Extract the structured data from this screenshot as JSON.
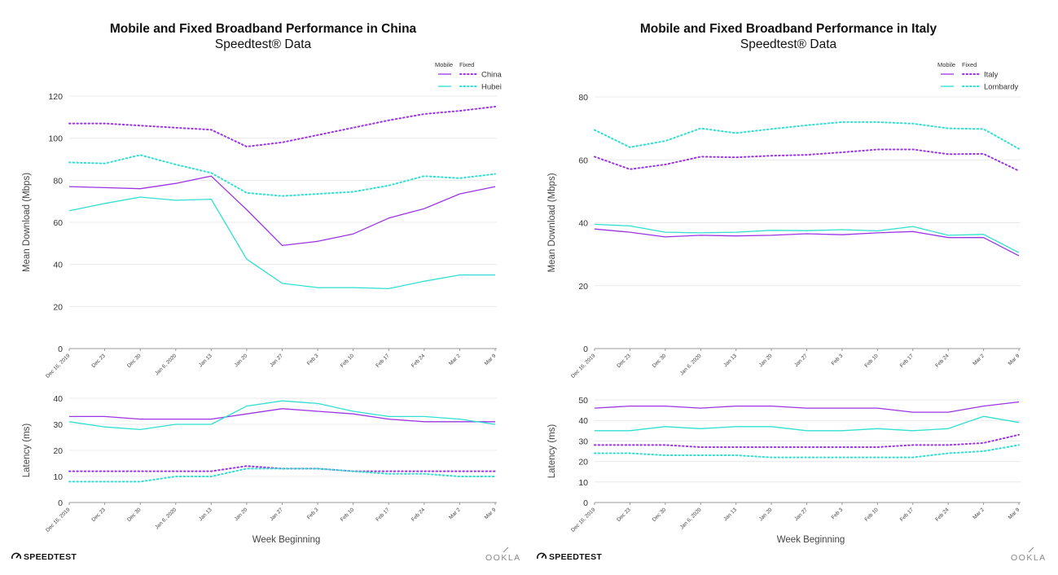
{
  "colors": {
    "purple": "#9a35e3",
    "cyan": "#2fe0d0"
  },
  "branding": {
    "speedtest": "SPEEDTEST",
    "ookla": "OOKLA"
  },
  "chart_data": [
    {
      "type": "line",
      "title": "Mobile and Fixed Broadband Performance in China",
      "subtitle": "Speedtest® Data",
      "categories": [
        "Dec 16, 2019",
        "Dec 23",
        "Dec 30",
        "Jan 6, 2020",
        "Jan 13",
        "Jan 20",
        "Jan 27",
        "Feb 3",
        "Feb 10",
        "Feb 17",
        "Feb 24",
        "Mar 2",
        "Mar 9"
      ],
      "legend": {
        "mobile_label": "Mobile",
        "fixed_label": "Fixed",
        "entries": [
          "China",
          "Hubei"
        ]
      },
      "download": {
        "ylabel": "Mean Download (Mbps)",
        "ylim": [
          0,
          120
        ],
        "yticks": [
          0,
          20,
          40,
          60,
          80,
          100,
          120
        ],
        "series": [
          {
            "name": "China",
            "type": "Mobile",
            "color": "purple",
            "values": [
              77,
              76.5,
              76,
              78.5,
              82,
              66,
              49,
              51,
              54.5,
              62,
              66.5,
              73.5,
              77
            ]
          },
          {
            "name": "Hubei",
            "type": "Mobile",
            "color": "cyan",
            "values": [
              65.5,
              69,
              72,
              70.5,
              71,
              42.5,
              31,
              29,
              29,
              28.5,
              32,
              35,
              35
            ]
          },
          {
            "name": "China",
            "type": "Fixed",
            "color": "purple",
            "values": [
              107,
              107,
              106,
              105,
              104,
              96,
              98,
              101.5,
              105,
              108.5,
              111.5,
              113,
              115
            ]
          },
          {
            "name": "Hubei",
            "type": "Fixed",
            "color": "cyan",
            "values": [
              88.5,
              88,
              92,
              87.5,
              83.5,
              74,
              72.5,
              73.5,
              74.5,
              77.5,
              82,
              81,
              83
            ]
          }
        ]
      },
      "latency": {
        "ylabel": "Latency (ms)",
        "xlabel": "Week Beginning",
        "ylim": [
          0,
          40
        ],
        "yticks": [
          0,
          10,
          20,
          30,
          40
        ],
        "series": [
          {
            "name": "China",
            "type": "Mobile",
            "color": "purple",
            "values": [
              33,
              33,
              32,
              32,
              32,
              34,
              36,
              35,
              34,
              32,
              31,
              31,
              31
            ]
          },
          {
            "name": "Hubei",
            "type": "Mobile",
            "color": "cyan",
            "values": [
              31,
              29,
              28,
              30,
              30,
              37,
              39,
              38,
              35,
              33,
              33,
              32,
              30
            ]
          },
          {
            "name": "China",
            "type": "Fixed",
            "color": "purple",
            "values": [
              12,
              12,
              12,
              12,
              12,
              14,
              13,
              13,
              12,
              12,
              12,
              12,
              12
            ]
          },
          {
            "name": "Hubei",
            "type": "Fixed",
            "color": "cyan",
            "values": [
              8,
              8,
              8,
              10,
              10,
              13,
              13,
              13,
              12,
              11,
              11,
              10,
              10
            ]
          }
        ]
      }
    },
    {
      "type": "line",
      "title": "Mobile and Fixed Broadband Performance in Italy",
      "subtitle": "Speedtest® Data",
      "categories": [
        "Dec 16, 2019",
        "Dec 23",
        "Dec 30",
        "Jan 6, 2020",
        "Jan 13",
        "Jan 20",
        "Jan 27",
        "Feb 3",
        "Feb 10",
        "Feb 17",
        "Feb 24",
        "Mar 2",
        "Mar 9"
      ],
      "legend": {
        "mobile_label": "Mobile",
        "fixed_label": "Fixed",
        "entries": [
          "Italy",
          "Lombardy"
        ]
      },
      "download": {
        "ylabel": "Mean Download (Mbps)",
        "ylim": [
          0,
          80
        ],
        "yticks": [
          0,
          20,
          40,
          60,
          80
        ],
        "series": [
          {
            "name": "Italy",
            "type": "Mobile",
            "color": "purple",
            "values": [
              38,
              37,
              35.5,
              36,
              35.8,
              36,
              36.5,
              36.2,
              36.8,
              37.2,
              35.3,
              35.3,
              29.5
            ]
          },
          {
            "name": "Lombardy",
            "type": "Mobile",
            "color": "cyan",
            "values": [
              39.5,
              39,
              37,
              36.8,
              37,
              37.6,
              37.5,
              37.8,
              37.4,
              38.8,
              36,
              36.3,
              30.5
            ]
          },
          {
            "name": "Italy",
            "type": "Fixed",
            "color": "purple",
            "values": [
              61,
              57,
              58.5,
              61,
              60.8,
              61.3,
              61.6,
              62.4,
              63.3,
              63.3,
              61.8,
              61.9,
              56.5
            ]
          },
          {
            "name": "Lombardy",
            "type": "Fixed",
            "color": "cyan",
            "values": [
              69.5,
              64,
              66,
              70,
              68.5,
              69.8,
              71,
              72,
              72,
              71.5,
              70,
              69.8,
              63.5
            ]
          }
        ]
      },
      "latency": {
        "ylabel": "Latency (ms)",
        "xlabel": "Week Beginning",
        "ylim": [
          0,
          50
        ],
        "yticks": [
          0,
          10,
          20,
          30,
          40,
          50
        ],
        "series": [
          {
            "name": "Italy",
            "type": "Mobile",
            "color": "purple",
            "values": [
              46,
              47,
              47,
              46,
              47,
              47,
              46,
              46,
              46,
              44,
              44,
              47,
              49
            ]
          },
          {
            "name": "Lombardy",
            "type": "Mobile",
            "color": "cyan",
            "values": [
              35,
              35,
              37,
              36,
              37,
              37,
              35,
              35,
              36,
              35,
              36,
              42,
              39
            ]
          },
          {
            "name": "Italy",
            "type": "Fixed",
            "color": "purple",
            "values": [
              28,
              28,
              28,
              27,
              27,
              27,
              27,
              27,
              27,
              28,
              28,
              29,
              33
            ]
          },
          {
            "name": "Lombardy",
            "type": "Fixed",
            "color": "cyan",
            "values": [
              24,
              24,
              23,
              23,
              23,
              22,
              22,
              22,
              22,
              22,
              24,
              25,
              28
            ]
          }
        ]
      }
    }
  ]
}
